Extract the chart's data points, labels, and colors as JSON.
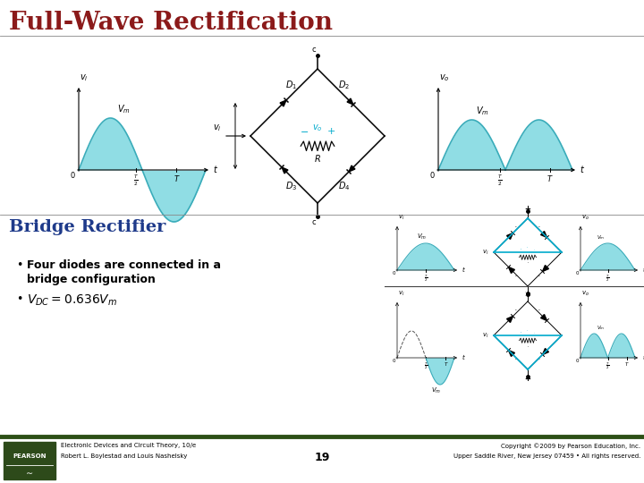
{
  "title": "Full-Wave Rectification",
  "title_color": "#8B1A1A",
  "title_fontsize": 20,
  "subtitle": "Bridge Rectifier",
  "subtitle_color": "#1E3A8A",
  "subtitle_fontsize": 14,
  "bullet1_line1": "Four diodes are connected in a",
  "bullet1_line2": "bridge configuration",
  "bullet2": "$V_{DC} = 0.636V_m$",
  "background_color": "#FFFFFF",
  "footer_left1": "Electronic Devices and Circuit Theory, 10/e",
  "footer_left2": "Robert L. Boylestad and Louis Nashelsky",
  "footer_center": "19",
  "footer_right1": "Copyright ©2009 by Pearson Education, Inc.",
  "footer_right2": "Upper Saddle River, New Jersey 07459 • All rights reserved.",
  "footer_bg": "#2D5016",
  "wave_color": "#7DD8E0",
  "wave_edge": "#3AACBA",
  "pearson_bg": "#2D4A1A"
}
